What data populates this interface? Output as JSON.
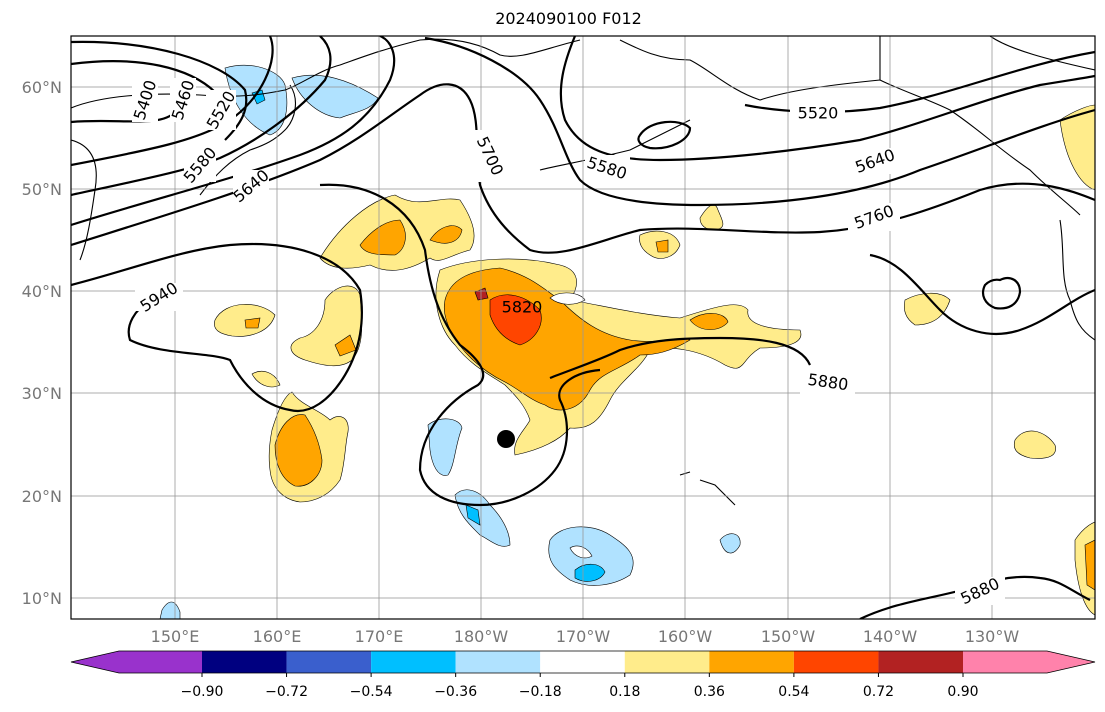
{
  "title": "2024090100 F012",
  "map": {
    "lon_labels": [
      "150°E",
      "160°E",
      "170°E",
      "180°W",
      "170°W",
      "160°W",
      "150°W",
      "140°W",
      "130°W"
    ],
    "lat_labels": [
      "60°N",
      "50°N",
      "40°N",
      "30°N",
      "20°N",
      "10°N"
    ],
    "extent": {
      "lon": [
        140,
        240
      ],
      "lat": [
        8,
        65
      ]
    },
    "contour_labels": [
      "5400",
      "5460",
      "5520",
      "5580",
      "5640",
      "5700",
      "5580",
      "5520",
      "5640",
      "5760",
      "5940",
      "5820",
      "5880",
      "5880"
    ],
    "contour_interval": 60,
    "marker": "storm-center"
  },
  "colorbar": {
    "ticks": [
      "−0.90",
      "−0.72",
      "−0.54",
      "−0.36",
      "−0.18",
      "0.18",
      "0.36",
      "0.54",
      "0.72",
      "0.90"
    ],
    "colors": [
      "#9932CC",
      "#000080",
      "#3A5FCD",
      "#00BFFF",
      "#B0E2FF",
      "#FFFFFF",
      "#FFEC8B",
      "#FFA500",
      "#FF4500",
      "#B22222",
      "#FF82AB"
    ],
    "extend": "both"
  }
}
